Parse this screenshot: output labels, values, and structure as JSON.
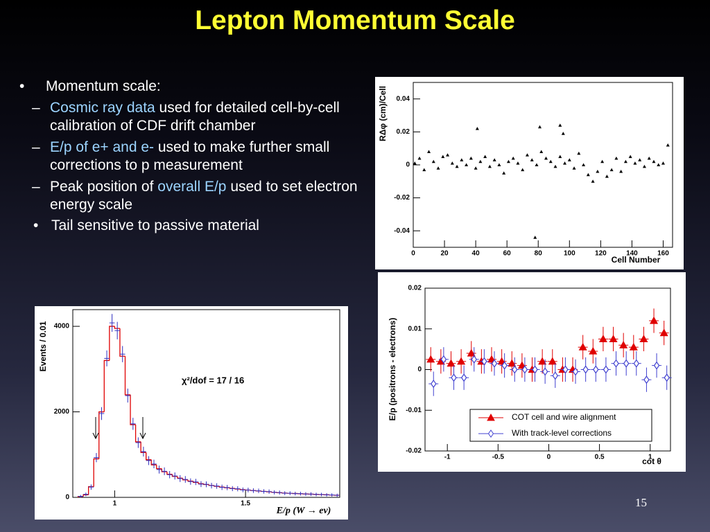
{
  "slide": {
    "title": "Lepton Momentum Scale",
    "bullets": [
      {
        "parts": [
          {
            "text": "Momentum scale:"
          }
        ],
        "items": [
          {
            "parts": [
              {
                "text": "Cosmic ray data",
                "highlight": true
              },
              {
                "text": " used for detailed cell-by-cell calibration of CDF drift chamber"
              }
            ]
          },
          {
            "parts": [
              {
                "text": "E/p of e+ and e-",
                "highlight": true
              },
              {
                "text": " used to make further small corrections to p measurement"
              }
            ]
          },
          {
            "parts": [
              {
                "text": "Peak position of "
              },
              {
                "text": "overall E/p",
                "highlight": true
              },
              {
                "text": " used to set electron energy scale"
              }
            ],
            "items": [
              {
                "parts": [
                  {
                    "text": "Tail sensitive to passive material"
                  }
                ]
              }
            ]
          }
        ]
      }
    ],
    "page_number": "15"
  },
  "chart_data": [
    {
      "type": "scatter",
      "xlabel": "Cell Number",
      "ylabel": "RΔφ (cm)/Cell",
      "color": "#000000",
      "x": [
        1,
        4,
        7,
        10,
        13,
        16,
        19,
        22,
        25,
        28,
        31,
        34,
        37,
        40,
        43,
        46,
        49,
        52,
        55,
        58,
        61,
        64,
        67,
        70,
        73,
        76,
        79,
        82,
        85,
        88,
        91,
        94,
        97,
        100,
        103,
        106,
        109,
        112,
        115,
        118,
        121,
        124,
        127,
        130,
        133,
        136,
        139,
        142,
        145,
        148,
        151,
        154,
        157,
        160,
        163,
        41,
        78,
        81,
        94,
        96
      ],
      "y": [
        0.001,
        0.004,
        -0.003,
        0.008,
        0.002,
        -0.002,
        0.005,
        0.006,
        0.001,
        -0.001,
        0.003,
        0.0,
        0.004,
        -0.002,
        0.002,
        0.005,
        -0.001,
        0.003,
        0.0,
        -0.005,
        0.002,
        0.004,
        0.001,
        -0.003,
        0.006,
        0.003,
        0.0,
        0.008,
        0.004,
        0.002,
        -0.001,
        0.005,
        0.001,
        0.003,
        -0.002,
        0.007,
        0.0,
        -0.006,
        -0.01,
        -0.004,
        0.002,
        -0.007,
        -0.003,
        0.004,
        -0.004,
        0.002,
        0.005,
        0.001,
        0.003,
        -0.001,
        0.004,
        0.002,
        0.0,
        0.001,
        0.012,
        0.022,
        -0.044,
        0.023,
        0.024,
        0.019
      ],
      "xlim": [
        0,
        166
      ],
      "xticks": [
        0,
        20,
        40,
        60,
        80,
        100,
        120,
        140,
        160
      ],
      "ylim": [
        -0.05,
        0.05
      ],
      "yticks": [
        0.04,
        0.02,
        0,
        -0.02,
        -0.04
      ]
    },
    {
      "type": "errorbar",
      "xlabel": "cot θ",
      "ylabel": "E/p (positrons - electrons)",
      "legend": "lower right",
      "x": [
        -1.15,
        -1.05,
        -0.95,
        -0.85,
        -0.75,
        -0.65,
        -0.55,
        -0.45,
        -0.35,
        -0.25,
        -0.15,
        -0.05,
        0.05,
        0.15,
        0.25,
        0.35,
        0.45,
        0.55,
        0.65,
        0.75,
        0.85,
        0.95,
        1.05,
        1.15
      ],
      "series": [
        {
          "name": "COT cell and wire alignment",
          "color": "#e00000",
          "marker": "triangle",
          "values": [
            0.0025,
            0.002,
            0.0015,
            0.002,
            0.004,
            0.002,
            0.0025,
            0.002,
            0.0015,
            0.001,
            0.0,
            0.002,
            0.002,
            0.0,
            0.0,
            0.0055,
            0.0045,
            0.0075,
            0.0075,
            0.006,
            0.0055,
            0.0075,
            0.012,
            0.009
          ],
          "errors": [
            0.003,
            0.003,
            0.003,
            0.003,
            0.003,
            0.003,
            0.003,
            0.003,
            0.003,
            0.003,
            0.003,
            0.003,
            0.003,
            0.003,
            0.003,
            0.003,
            0.003,
            0.003,
            0.003,
            0.003,
            0.003,
            0.003,
            0.003,
            0.003
          ]
        },
        {
          "name": "With track-level corrections",
          "color": "#4040d0",
          "marker": "diamond",
          "values": [
            -0.0035,
            0.0025,
            -0.002,
            -0.002,
            0.0025,
            0.002,
            0.0015,
            0.001,
            0.0,
            0.0,
            0.0,
            -0.0005,
            -0.0015,
            0.0,
            -0.0005,
            0.0,
            0.0,
            0.0,
            0.0015,
            0.0015,
            0.0015,
            -0.0025,
            0.001,
            -0.002
          ],
          "errors": [
            0.003,
            0.003,
            0.003,
            0.003,
            0.003,
            0.003,
            0.003,
            0.003,
            0.003,
            0.003,
            0.003,
            0.003,
            0.003,
            0.003,
            0.003,
            0.003,
            0.003,
            0.003,
            0.003,
            0.003,
            0.003,
            0.003,
            0.003,
            0.003
          ]
        }
      ],
      "xlim": [
        -1.22,
        1.2
      ],
      "xticks": [
        -1,
        -0.5,
        0,
        0.5,
        1
      ],
      "ylim": [
        -0.02,
        0.02
      ],
      "yticks": [
        0.02,
        0.01,
        0,
        -0.01,
        -0.02
      ]
    },
    {
      "type": "histogram",
      "xlabel": "E/p (W → eν)",
      "ylabel": "Events / 0.01",
      "annotation": "χ²/dof = 17 / 16",
      "color": "#e00000",
      "data_color": "#3030c0",
      "bins": [
        0.86,
        0.88,
        0.9,
        0.92,
        0.94,
        0.96,
        0.98,
        1.0,
        1.02,
        1.04,
        1.06,
        1.08,
        1.1,
        1.12,
        1.14,
        1.16,
        1.18,
        1.2,
        1.22,
        1.24,
        1.26,
        1.28,
        1.3,
        1.32,
        1.34,
        1.36,
        1.38,
        1.4,
        1.42,
        1.44,
        1.46,
        1.48,
        1.5,
        1.52,
        1.54,
        1.56,
        1.58,
        1.6,
        1.62,
        1.64,
        1.66,
        1.68,
        1.7,
        1.72,
        1.74,
        1.76,
        1.78,
        1.8,
        1.82,
        1.84,
        1.86
      ],
      "values": [
        20,
        60,
        250,
        900,
        2000,
        3200,
        4000,
        3950,
        3300,
        2400,
        1700,
        1300,
        1050,
        880,
        760,
        670,
        600,
        540,
        490,
        450,
        410,
        380,
        350,
        320,
        300,
        280,
        260,
        240,
        225,
        210,
        195,
        180,
        170,
        160,
        150,
        140,
        130,
        120,
        110,
        100,
        95,
        90,
        85,
        80,
        75,
        70,
        65,
        60,
        55,
        50
      ],
      "data_values": [
        25,
        70,
        240,
        930,
        1960,
        3250,
        4080,
        3900,
        3350,
        2380,
        1720,
        1280,
        1070,
        860,
        780,
        650,
        610,
        530,
        500,
        440,
        420,
        370,
        360,
        310,
        305,
        275,
        265,
        235,
        230,
        205,
        200,
        175,
        172,
        158,
        152,
        138,
        133,
        118,
        112,
        98,
        97,
        88,
        87,
        78,
        77,
        68,
        66,
        59,
        56,
        49
      ],
      "xlim": [
        0.84,
        1.86
      ],
      "xticks": [
        1,
        1.5
      ],
      "ylim": [
        0,
        4390
      ],
      "yticks": [
        0,
        2000,
        4000
      ]
    }
  ]
}
